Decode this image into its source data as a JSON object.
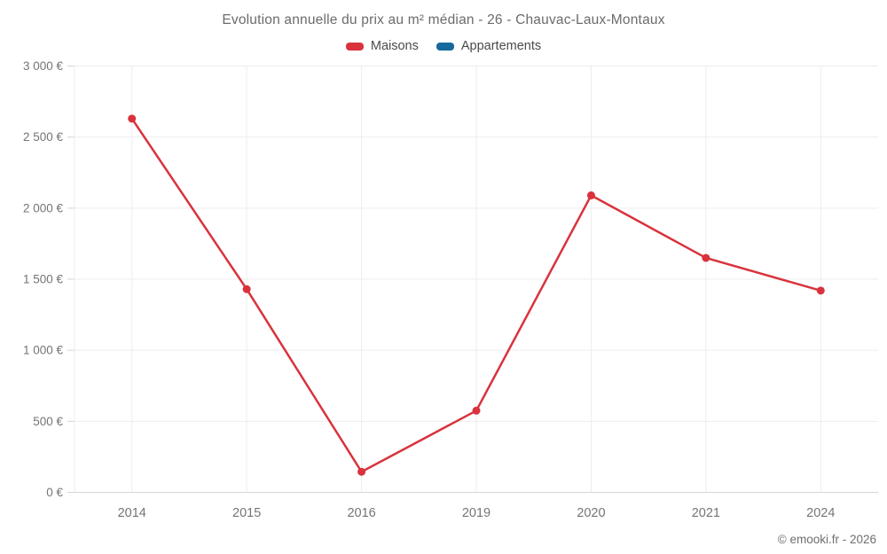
{
  "chart_data": {
    "type": "line",
    "title": "Evolution annuelle du prix au m² médian - 26 - Chauvac-Laux-Montaux",
    "categories": [
      "2014",
      "2015",
      "2016",
      "2019",
      "2020",
      "2021",
      "2024"
    ],
    "series": [
      {
        "name": "Maisons",
        "color": "#d9323c",
        "values": [
          2630,
          1430,
          145,
          575,
          2090,
          1650,
          1420
        ]
      },
      {
        "name": "Appartements",
        "color": "#17699c",
        "values": []
      }
    ],
    "ylim": [
      0,
      3000
    ],
    "ytick_step": 500,
    "ytick_labels": [
      "0 €",
      "500 €",
      "1 000 €",
      "1 500 €",
      "2 000 €",
      "2 500 €",
      "3 000 €"
    ],
    "xlabel": "",
    "ylabel": "",
    "grid": true,
    "legend_position": "top"
  },
  "footer": {
    "credit": "© emooki.fr - 2026"
  }
}
